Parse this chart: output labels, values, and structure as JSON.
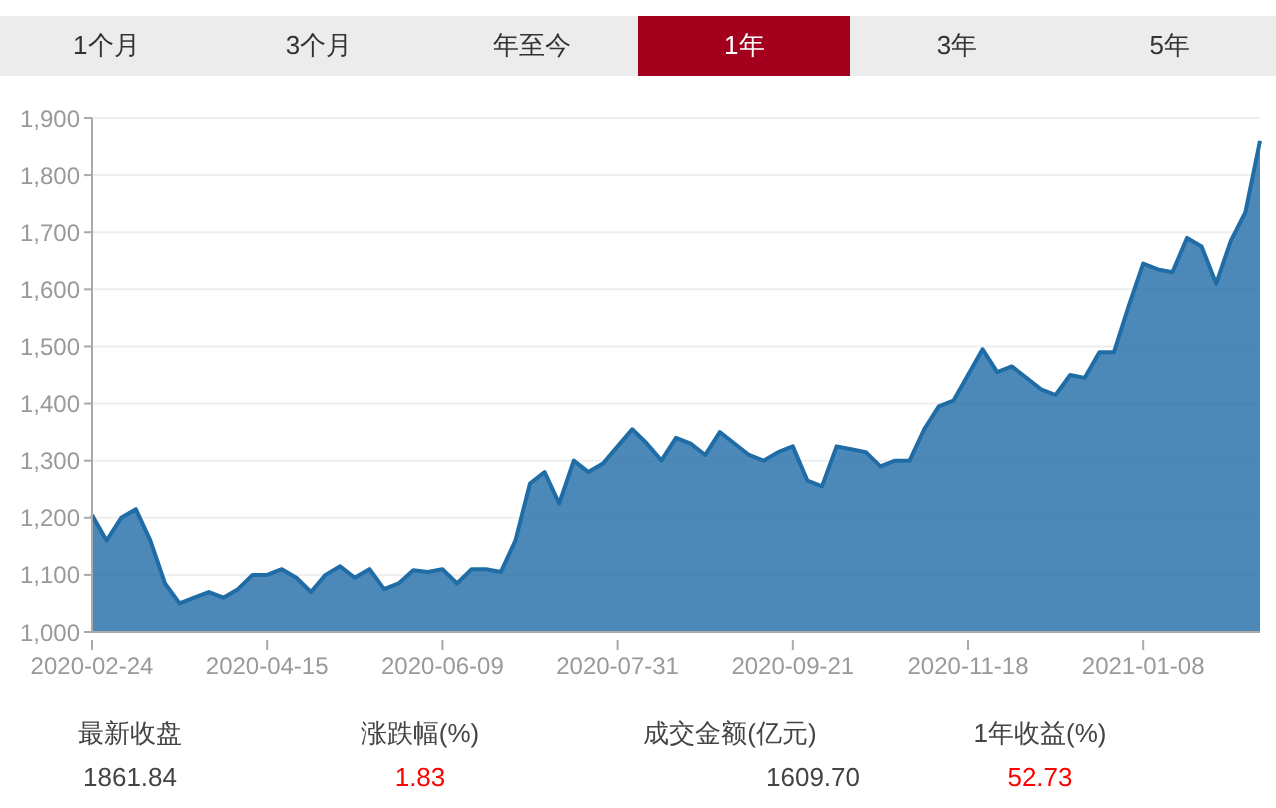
{
  "chart_data": {
    "type": "area",
    "categories": [
      "2020-02-24",
      null,
      null,
      null,
      null,
      null,
      null,
      null,
      null,
      null,
      null,
      null,
      "2020-04-15",
      null,
      null,
      null,
      null,
      null,
      null,
      null,
      null,
      null,
      null,
      null,
      "2020-06-09",
      null,
      null,
      null,
      null,
      null,
      null,
      null,
      null,
      null,
      null,
      null,
      "2020-07-31",
      null,
      null,
      null,
      null,
      null,
      null,
      null,
      null,
      null,
      null,
      null,
      "2020-09-21",
      null,
      null,
      null,
      null,
      null,
      null,
      null,
      null,
      null,
      null,
      null,
      "2020-11-18",
      null,
      null,
      null,
      null,
      null,
      null,
      null,
      null,
      null,
      null,
      null,
      "2021-01-08",
      null,
      null,
      null,
      null,
      null,
      null,
      null,
      null
    ],
    "series": [
      {
        "color": "#1f6ca6",
        "values": [
          1205,
          1160,
          1200,
          1215,
          1160,
          1085,
          1050,
          1060,
          1070,
          1060,
          1075,
          1100,
          1100,
          1110,
          1095,
          1070,
          1100,
          1115,
          1095,
          1110,
          1075,
          1085,
          1108,
          1105,
          1110,
          1085,
          1110,
          1110,
          1105,
          1160,
          1260,
          1280,
          1225,
          1300,
          1280,
          1295,
          1325,
          1355,
          1330,
          1300,
          1340,
          1330,
          1310,
          1350,
          1330,
          1310,
          1300,
          1315,
          1325,
          1265,
          1255,
          1325,
          1320,
          1315,
          1290,
          1300,
          1300,
          1355,
          1395,
          1405,
          1450,
          1495,
          1455,
          1465,
          1445,
          1425,
          1415,
          1450,
          1445,
          1490,
          1490,
          1570,
          1645,
          1635,
          1630,
          1690,
          1675,
          1610,
          1685,
          1735,
          1860
        ]
      }
    ],
    "ylim": [
      1000,
      1900
    ],
    "yticks": [
      {
        "value": 1000,
        "label": "1,000"
      },
      {
        "value": 1100,
        "label": "1,100"
      },
      {
        "value": 1200,
        "label": "1,200"
      },
      {
        "value": 1300,
        "label": "1,300"
      },
      {
        "value": 1400,
        "label": "1,400"
      },
      {
        "value": 1500,
        "label": "1,500"
      },
      {
        "value": 1600,
        "label": "1,600"
      },
      {
        "value": 1700,
        "label": "1,700"
      },
      {
        "value": 1800,
        "label": "1,800"
      },
      {
        "value": 1900,
        "label": "1,900"
      }
    ],
    "grid": "y",
    "annotations": [
      "1个月",
      "3个月",
      "年至今",
      "1年",
      "3年",
      "5年",
      "最新收盘",
      "涨跌幅(%)",
      "成交金额(亿元)",
      "1年收益(%)",
      "1861.84",
      "1.83",
      "1609.70",
      "52.73"
    ]
  }
}
